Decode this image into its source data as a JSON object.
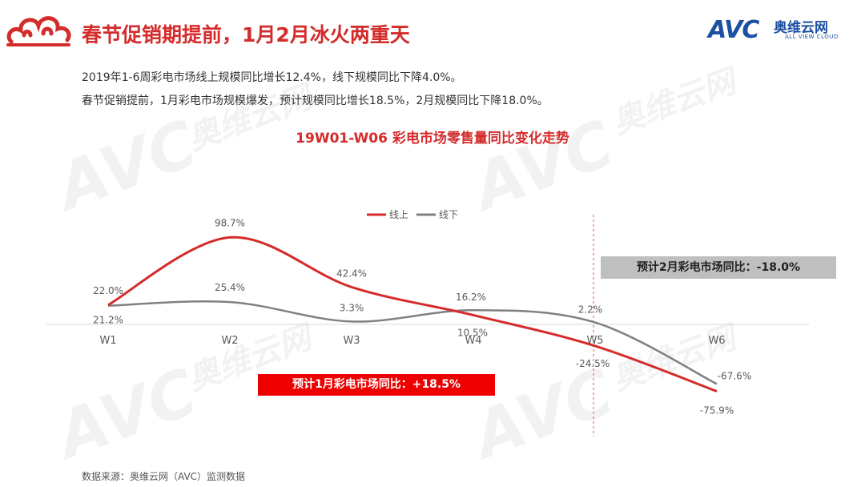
{
  "header": {
    "title": "春节促销期提前，1月2月冰火两重天",
    "logo_cn": "奥维云网",
    "logo_en": "ALL VIEW CLOUD",
    "logo_mark": "AVC"
  },
  "summary": {
    "line1": "2019年1-6周彩电市场线上规模同比增长12.4%，线下规模同比下降4.0%。",
    "line2": "春节促销提前，1月彩电市场规模爆发，预计规模同比增长18.5%，2月规模同比下降18.0%。"
  },
  "watermark": {
    "mark": "AVC",
    "cn": "奥维云网",
    "en": "ALL VIEW CLOUD"
  },
  "notes": {
    "feb": "预计2月彩电市场同比：-18.0%",
    "jan": "预计1月彩电市场同比：+18.5%"
  },
  "source": "数据来源：奥维云网（AVC）监测数据",
  "chart_data": {
    "type": "line",
    "title": "19W01-W06 彩电市场零售量同比变化走势",
    "categories": [
      "W1",
      "W2",
      "W3",
      "W4",
      "W5",
      "W6"
    ],
    "series": [
      {
        "name": "线上",
        "color": "#d42b2b",
        "values": [
          22.0,
          98.7,
          42.4,
          10.5,
          -24.5,
          -75.9
        ],
        "labels": [
          "22.0%",
          "98.7%",
          "42.4%",
          "10.5%",
          "-24.5%",
          "-75.9%"
        ]
      },
      {
        "name": "线下",
        "color": "#808080",
        "values": [
          21.2,
          25.4,
          3.3,
          16.2,
          2.2,
          -67.6
        ],
        "labels": [
          "21.2%",
          "25.4%",
          "3.3%",
          "16.2%",
          "2.2%",
          "-67.6%"
        ]
      }
    ],
    "ylim": [
      -100,
      120
    ],
    "grid": false,
    "legend": "top-center",
    "annotation_line": "dashed vertical line between W4 and W5"
  }
}
